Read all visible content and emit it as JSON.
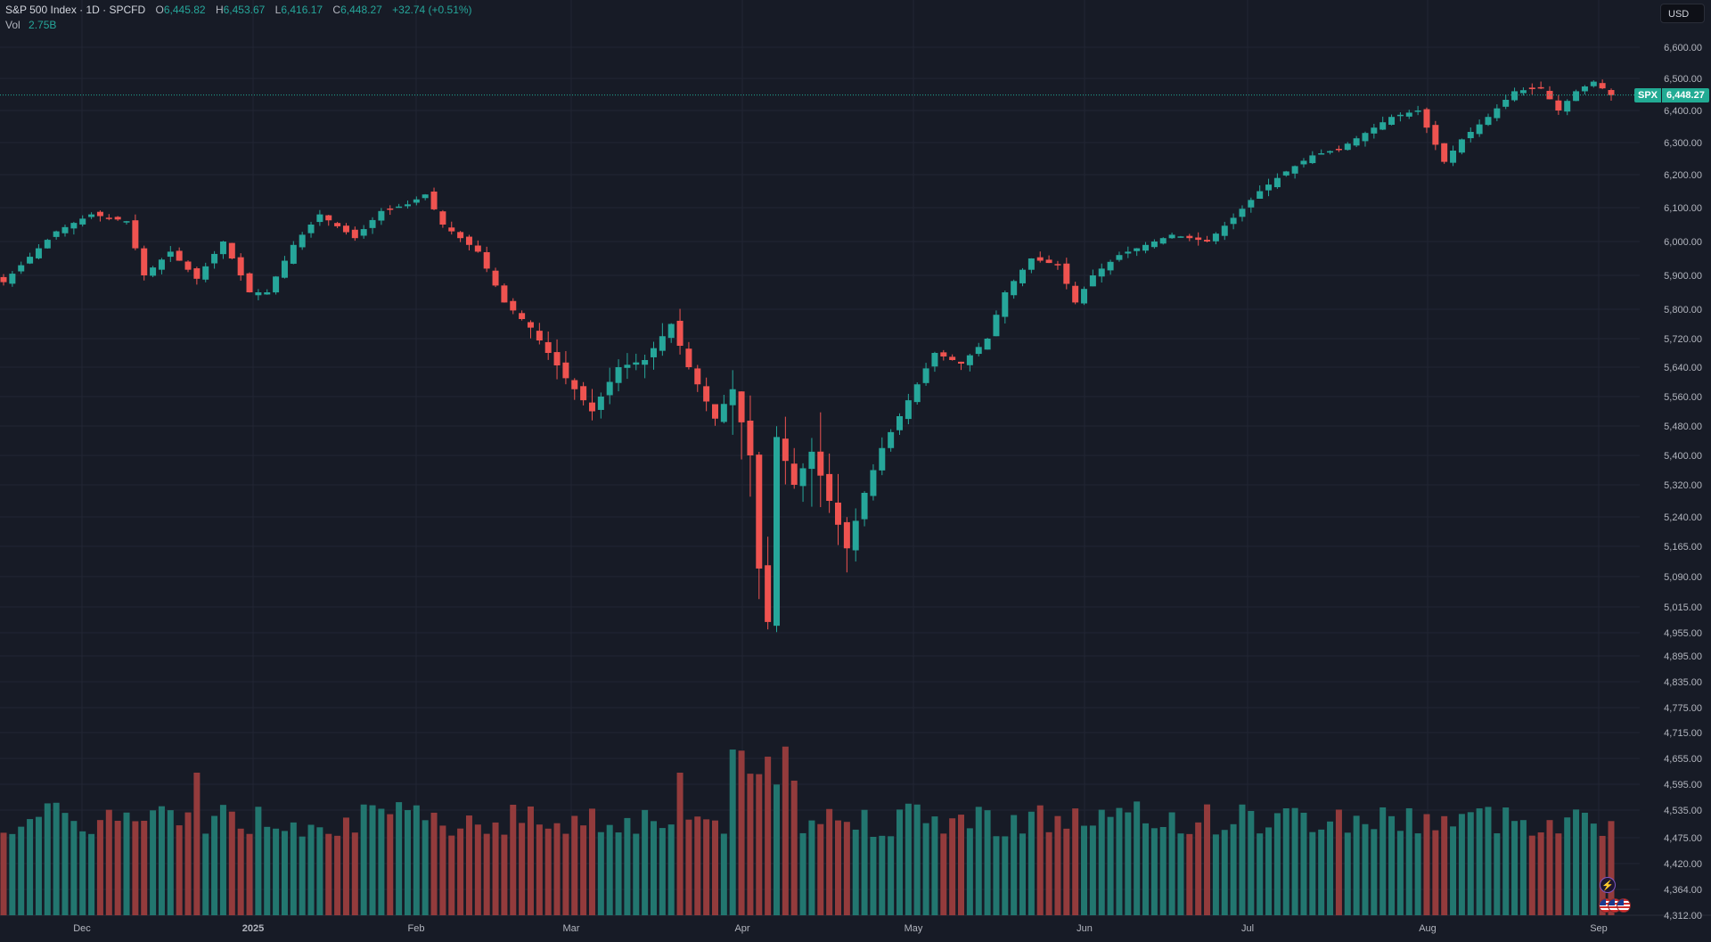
{
  "legend": {
    "title": "S&P 500 Index · 1D · SPCFD",
    "open_label": "O",
    "open_value": "6,445.82",
    "high_label": "H",
    "high_value": "6,453.67",
    "low_label": "L",
    "low_value": "6,416.17",
    "close_label": "C",
    "close_value": "6,448.27",
    "change": "+32.74 (+0.51%)",
    "vol_label": "Vol",
    "vol_value": "2.75B"
  },
  "currency": "USD",
  "last_price": {
    "symbol": "SPX",
    "value": "6,448.27"
  },
  "colors": {
    "background": "#171b26",
    "up": "#26a69a",
    "down": "#ef5350",
    "vol_up": "#22766f",
    "vol_down": "#933b3c",
    "grid": "#222634"
  },
  "icons": [
    "lightning-icon",
    "us-flag-icon"
  ],
  "chart_data": {
    "type": "candlestick",
    "title": "S&P 500 Index · 1D · SPCFD",
    "y_ticks": [
      "6,600.00",
      "6,500.00",
      "6,400.00",
      "6,300.00",
      "6,200.00",
      "6,100.00",
      "6,000.00",
      "5,900.00",
      "5,800.00",
      "5,720.00",
      "5,640.00",
      "5,560.00",
      "5,480.00",
      "5,400.00",
      "5,320.00",
      "5,240.00",
      "5,165.00",
      "5,090.00",
      "5,015.00",
      "4,955.00",
      "4,895.00",
      "4,835.00",
      "4,775.00",
      "4,715.00",
      "4,655.00",
      "4,595.00",
      "4,535.00",
      "4,475.00",
      "4,420.00",
      "4,364.00",
      "4,312.00"
    ],
    "x_ticks": [
      "Dec",
      "2025",
      "Feb",
      "Mar",
      "Apr",
      "May",
      "Jun",
      "Jul",
      "Aug",
      "Sep"
    ],
    "ylim": [
      4312,
      6600
    ],
    "scale": "log",
    "grid": true,
    "close_trajectory": [
      [
        0,
        5880
      ],
      [
        6,
        6030
      ],
      [
        10,
        6080
      ],
      [
        14,
        6060
      ],
      [
        16,
        5900
      ],
      [
        19,
        5970
      ],
      [
        22,
        5890
      ],
      [
        25,
        6000
      ],
      [
        28,
        5850
      ],
      [
        30,
        5850
      ],
      [
        33,
        5990
      ],
      [
        36,
        6080
      ],
      [
        40,
        6010
      ],
      [
        43,
        6090
      ],
      [
        46,
        6110
      ],
      [
        48,
        6140
      ],
      [
        50,
        6050
      ],
      [
        54,
        5970
      ],
      [
        57,
        5820
      ],
      [
        60,
        5750
      ],
      [
        64,
        5610
      ],
      [
        67,
        5520
      ],
      [
        70,
        5640
      ],
      [
        73,
        5660
      ],
      [
        76,
        5760
      ],
      [
        78,
        5640
      ],
      [
        81,
        5500
      ],
      [
        83,
        5580
      ],
      [
        85,
        5400
      ],
      [
        86,
        5110
      ],
      [
        87,
        4980
      ],
      [
        88,
        5450
      ],
      [
        90,
        5320
      ],
      [
        92,
        5410
      ],
      [
        94,
        5280
      ],
      [
        96,
        5160
      ],
      [
        98,
        5300
      ],
      [
        100,
        5420
      ],
      [
        103,
        5550
      ],
      [
        106,
        5680
      ],
      [
        109,
        5650
      ],
      [
        112,
        5720
      ],
      [
        114,
        5850
      ],
      [
        117,
        5950
      ],
      [
        120,
        5930
      ],
      [
        122,
        5820
      ],
      [
        124,
        5900
      ],
      [
        127,
        5960
      ],
      [
        130,
        5990
      ],
      [
        133,
        6020
      ],
      [
        137,
        6000
      ],
      [
        140,
        6070
      ],
      [
        143,
        6150
      ],
      [
        146,
        6210
      ],
      [
        149,
        6260
      ],
      [
        152,
        6280
      ],
      [
        155,
        6330
      ],
      [
        158,
        6380
      ],
      [
        161,
        6400
      ],
      [
        164,
        6240
      ],
      [
        166,
        6310
      ],
      [
        169,
        6380
      ],
      [
        172,
        6460
      ],
      [
        175,
        6470
      ],
      [
        177,
        6400
      ],
      [
        179,
        6460
      ],
      [
        181,
        6490
      ],
      [
        183,
        6448
      ]
    ],
    "wicks_extremes": {
      "min_low": 4835,
      "max_high": 6500
    },
    "volume": {
      "last": "2.75B"
    }
  }
}
